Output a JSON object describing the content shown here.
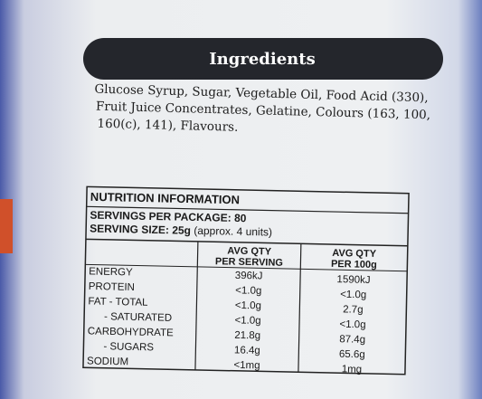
{
  "ingredients": {
    "heading": "Ingredients",
    "lines": [
      "Glucose Syrup, Sugar, Vegetable Oil, Food Acid (330),",
      "Fruit Juice Concentrates, Gelatine, Colours (163, 100,",
      "160(c), 141), Flavours."
    ]
  },
  "nutrition": {
    "title": "NUTRITION INFORMATION",
    "servings_per_package": "SERVINGS PER PACKAGE: 80",
    "serving_size": "SERVING SIZE: 25g",
    "serving_size_note": "(approx. 4 units)",
    "columns": [
      [
        "AVG QTY",
        "PER SERVING"
      ],
      [
        "AVG QTY",
        "PER 100g"
      ]
    ],
    "rows": [
      [
        "ENERGY",
        "396kJ",
        "1590kJ"
      ],
      [
        "PROTEIN",
        "<1.0g",
        "<1.0g"
      ],
      [
        "FAT - TOTAL",
        "<1.0g",
        "2.7g"
      ],
      [
        "- SATURATED",
        "<1.0g",
        "<1.0g"
      ],
      [
        "CARBOHYDRATE",
        "21.8g",
        "87.4g"
      ],
      [
        "- SUGARS",
        "16.4g",
        "65.6g"
      ],
      [
        "SODIUM",
        "<1mg",
        "1mg"
      ]
    ]
  }
}
